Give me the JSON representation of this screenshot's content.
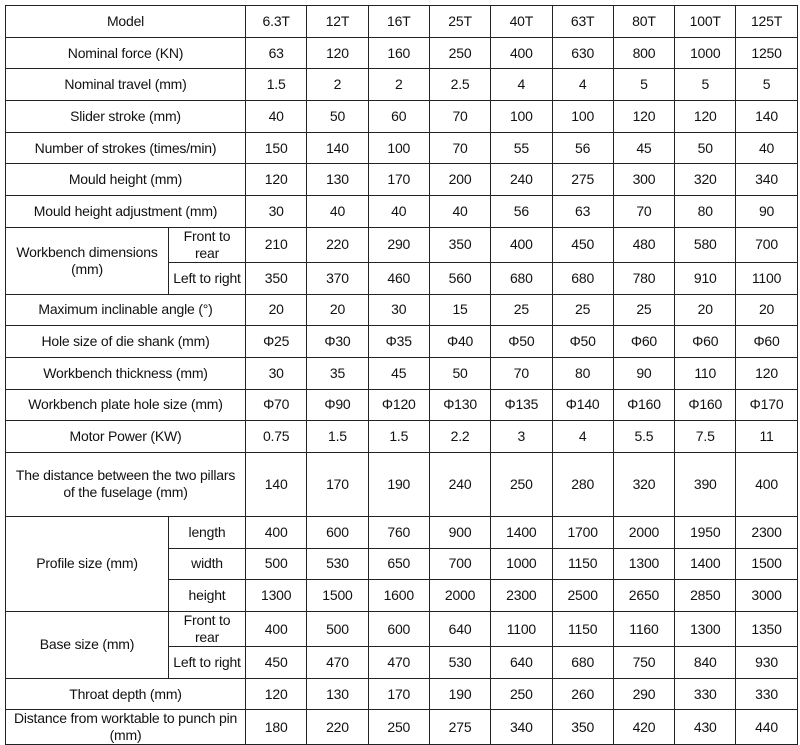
{
  "table": {
    "header": {
      "label": "Model",
      "columns": [
        "6.3T",
        "12T",
        "16T",
        "25T",
        "40T",
        "63T",
        "80T",
        "100T",
        "125T"
      ]
    },
    "rows": [
      {
        "label": "Nominal force (KN)",
        "values": [
          63,
          120,
          160,
          250,
          400,
          630,
          800,
          1000,
          1250
        ]
      },
      {
        "label": "Nominal travel (mm)",
        "values": [
          1.5,
          2,
          2,
          2.5,
          4,
          4,
          5,
          5,
          5
        ]
      },
      {
        "label": "Slider stroke (mm)",
        "values": [
          40,
          50,
          60,
          70,
          100,
          100,
          120,
          120,
          140
        ]
      },
      {
        "label": "Number of strokes (times/min)",
        "values": [
          150,
          140,
          100,
          70,
          55,
          56,
          45,
          50,
          40
        ]
      },
      {
        "label": "Mould height (mm)",
        "values": [
          120,
          130,
          170,
          200,
          240,
          275,
          300,
          320,
          340
        ]
      },
      {
        "label": "Mould height adjustment (mm)",
        "values": [
          30,
          40,
          40,
          40,
          56,
          63,
          70,
          80,
          90
        ]
      },
      {
        "label": "Workbench dimensions (mm)",
        "subrows": [
          {
            "label": "Front to rear",
            "values": [
              210,
              220,
              290,
              350,
              400,
              450,
              480,
              580,
              700
            ]
          },
          {
            "label": "Left to right",
            "values": [
              350,
              370,
              460,
              560,
              680,
              680,
              780,
              910,
              1100
            ]
          }
        ]
      },
      {
        "label": "Maximum inclinable angle (°)",
        "values": [
          20,
          20,
          30,
          15,
          25,
          25,
          25,
          20,
          20
        ]
      },
      {
        "label": "Hole size of die shank (mm)",
        "values": [
          "Φ25",
          "Φ30",
          "Φ35",
          "Φ40",
          "Φ50",
          "Φ50",
          "Φ60",
          "Φ60",
          "Φ60"
        ]
      },
      {
        "label": "Workbench thickness (mm)",
        "values": [
          30,
          35,
          45,
          50,
          70,
          80,
          90,
          110,
          120
        ]
      },
      {
        "label": "Workbench plate hole size (mm)",
        "values": [
          "Φ70",
          "Φ90",
          "Φ120",
          "Φ130",
          "Φ135",
          "Φ140",
          "Φ160",
          "Φ160",
          "Φ170"
        ]
      },
      {
        "label": "Motor Power (KW)",
        "values": [
          0.75,
          1.5,
          1.5,
          2.2,
          3,
          4,
          5.5,
          7.5,
          11
        ]
      },
      {
        "label": "The distance between the two pillars of the fuselage (mm)",
        "values": [
          140,
          170,
          190,
          240,
          250,
          280,
          320,
          390,
          400
        ]
      },
      {
        "label": "Profile size (mm)",
        "subrows": [
          {
            "label": "length",
            "values": [
              400,
              600,
              760,
              900,
              1400,
              1700,
              2000,
              1950,
              2300
            ]
          },
          {
            "label": "width",
            "values": [
              500,
              530,
              650,
              700,
              1000,
              1150,
              1300,
              1400,
              1500
            ]
          },
          {
            "label": "height",
            "values": [
              1300,
              1500,
              1600,
              2000,
              2300,
              2500,
              2650,
              2850,
              3000
            ]
          }
        ]
      },
      {
        "label": "Base size (mm)",
        "subrows": [
          {
            "label": "Front to rear",
            "values": [
              400,
              500,
              600,
              640,
              1100,
              1150,
              1160,
              1300,
              1350
            ]
          },
          {
            "label": "Left to right",
            "values": [
              450,
              470,
              470,
              530,
              640,
              680,
              750,
              840,
              930
            ]
          }
        ]
      },
      {
        "label": "Throat depth (mm)",
        "values": [
          120,
          130,
          170,
          190,
          250,
          260,
          290,
          330,
          330
        ]
      },
      {
        "label": "Distance from worktable to punch pin (mm)",
        "values": [
          180,
          220,
          250,
          275,
          340,
          350,
          420,
          430,
          440
        ]
      }
    ]
  }
}
